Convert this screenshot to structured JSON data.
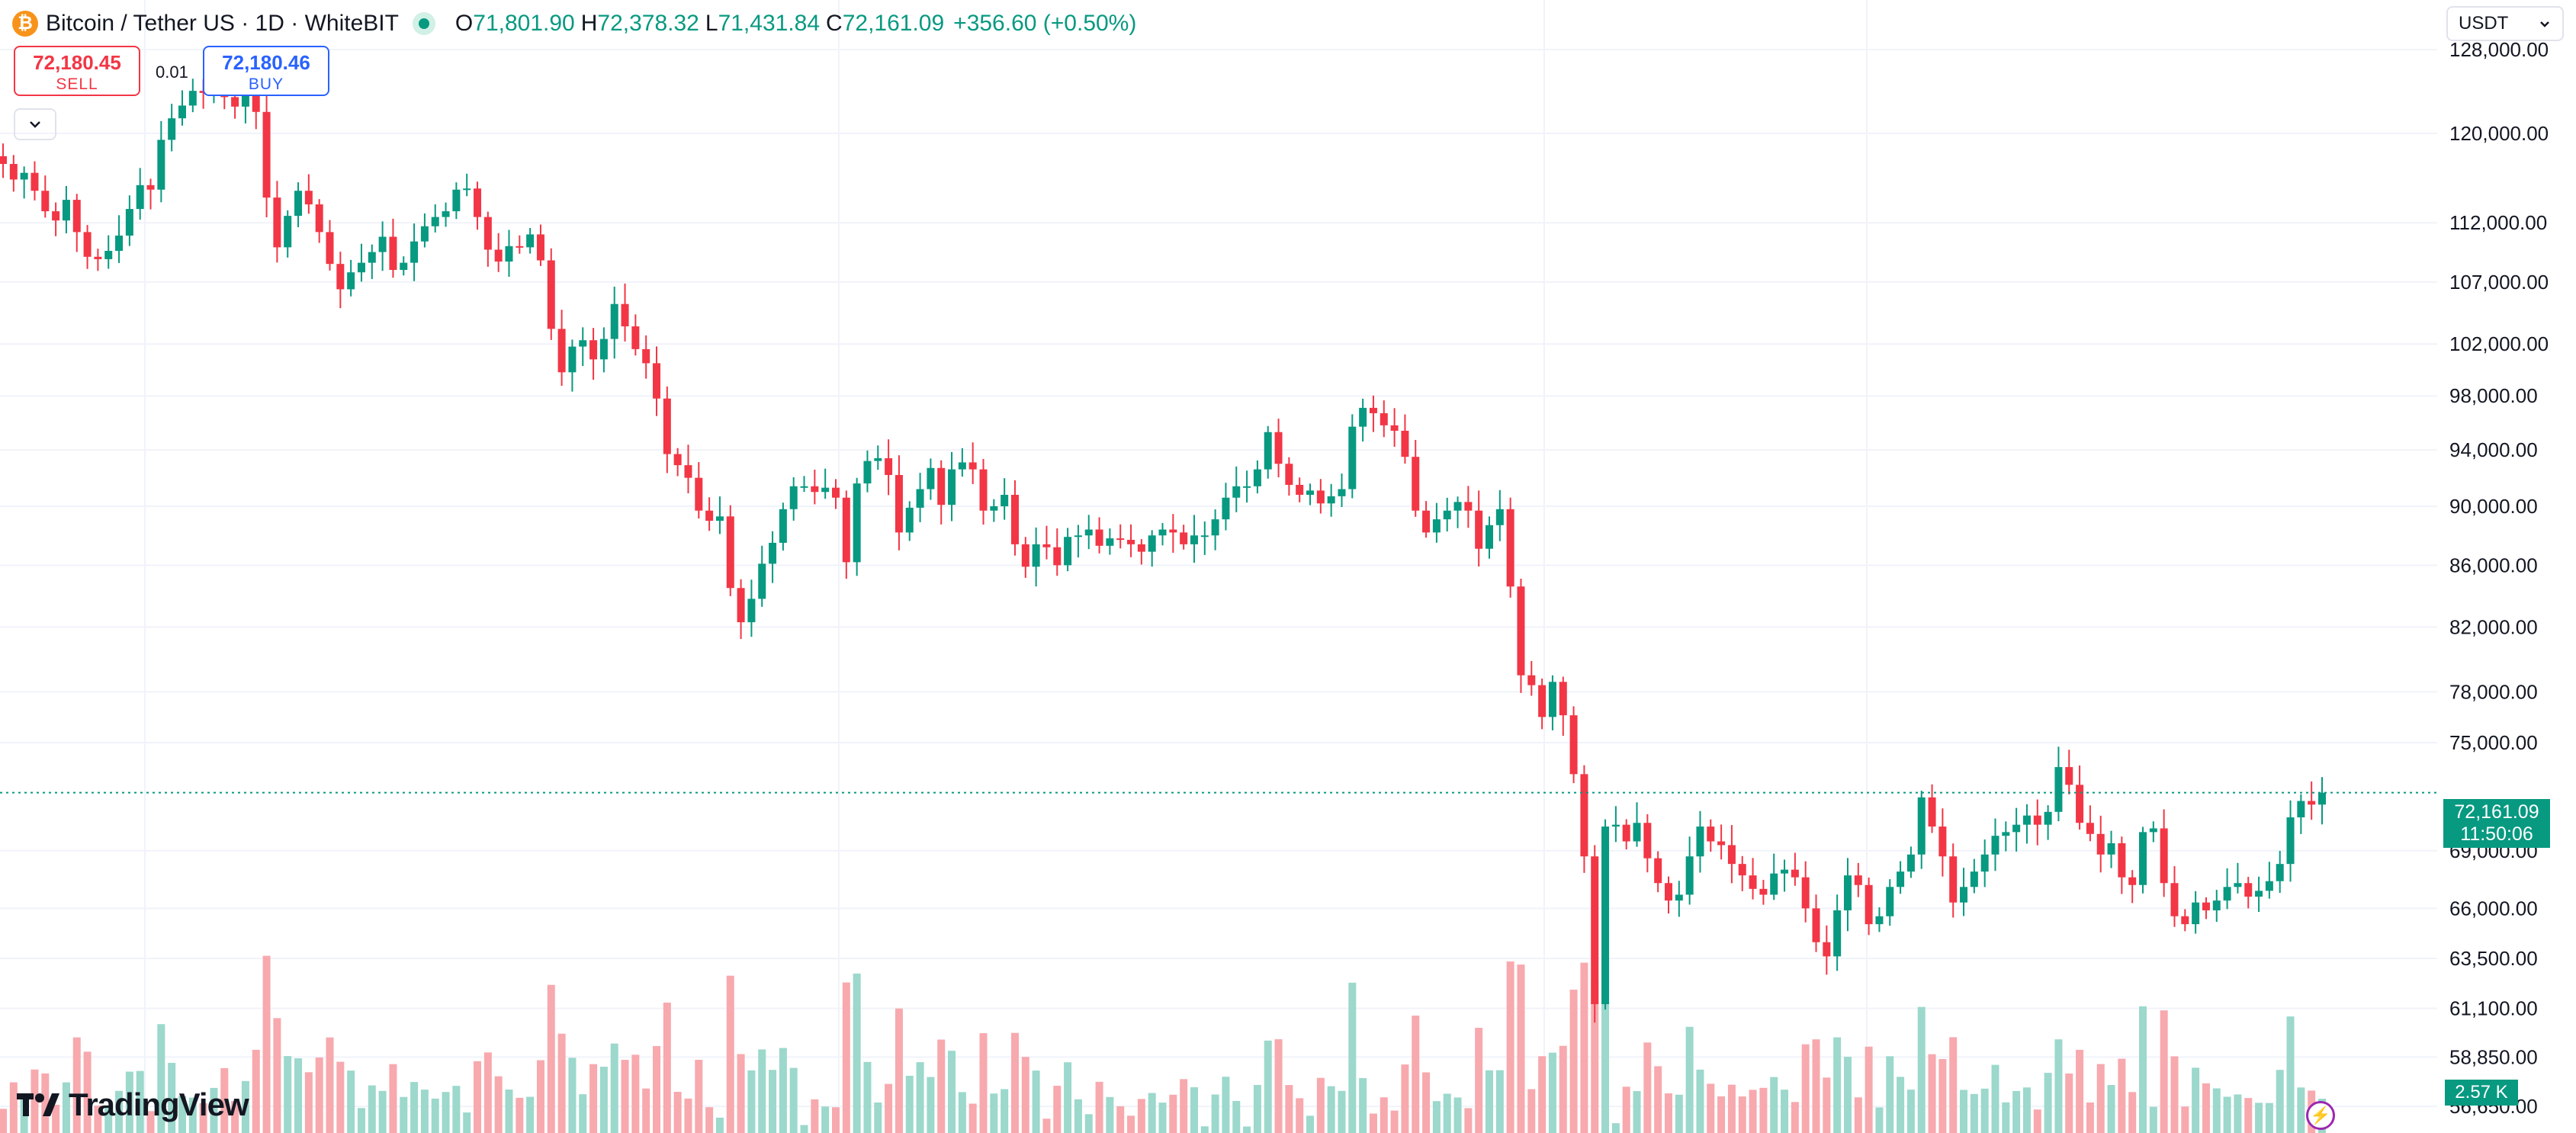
{
  "legend": {
    "symbol": "Bitcoin / Tether US · 1D · WhiteBIT",
    "icon": "bitcoin-icon",
    "open_label": "O",
    "open": "71,801.90",
    "high_label": "H",
    "high": "72,378.32",
    "low_label": "L",
    "low": "71,431.84",
    "close_label": "C",
    "close": "72,161.09",
    "change": "+356.60 (+0.50%)"
  },
  "trade": {
    "sell_price": "72,180.45",
    "sell_label": "SELL",
    "spread": "0.01",
    "buy_price": "72,180.46",
    "buy_label": "BUY"
  },
  "currency": "USDT",
  "last_price": {
    "price": "72,161.09",
    "countdown": "11:50:06",
    "value": 72161.09
  },
  "volume_tag": "2.57 K",
  "logo": "TradingView",
  "colors": {
    "up": "#089981",
    "down": "#f23645",
    "up_vol": "#9cd8cc",
    "down_vol": "#f7a9ae",
    "grid": "#f0f3fa"
  },
  "chart_data": {
    "type": "candlestick",
    "title": "Bitcoin / Tether US · 1D · WhiteBIT",
    "scale": "log",
    "ylim": [
      55500,
      133000
    ],
    "y_ticks": [
      {
        "value": 128000,
        "label": "128,000.00"
      },
      {
        "value": 120000,
        "label": "120,000.00"
      },
      {
        "value": 112000,
        "label": "112,000.00"
      },
      {
        "value": 107000,
        "label": "107,000.00"
      },
      {
        "value": 102000,
        "label": "102,000.00"
      },
      {
        "value": 98000,
        "label": "98,000.00"
      },
      {
        "value": 94000,
        "label": "94,000.00"
      },
      {
        "value": 90000,
        "label": "90,000.00"
      },
      {
        "value": 86000,
        "label": "86,000.00"
      },
      {
        "value": 82000,
        "label": "82,000.00"
      },
      {
        "value": 78000,
        "label": "78,000.00"
      },
      {
        "value": 75000,
        "label": "75,000.00"
      },
      {
        "value": 69000,
        "label": "69,000.00"
      },
      {
        "value": 66000,
        "label": "66,000.00"
      },
      {
        "value": 63500,
        "label": "63,500.00"
      },
      {
        "value": 61100,
        "label": "61,100.00"
      },
      {
        "value": 58850,
        "label": "58,850.00"
      },
      {
        "value": 56650,
        "label": "56,650.00"
      }
    ],
    "closes": [
      117200,
      115800,
      116400,
      114800,
      113000,
      112200,
      114000,
      111200,
      109100,
      108900,
      109600,
      110900,
      113200,
      115300,
      114900,
      119400,
      121400,
      122600,
      124000,
      123800,
      125100,
      123400,
      122500,
      124600,
      122000,
      114200,
      109900,
      112600,
      114800,
      113600,
      111200,
      108500,
      106400,
      107800,
      108600,
      109500,
      110800,
      108000,
      108600,
      110400,
      111700,
      112500,
      113000,
      114900,
      115000,
      112500,
      109700,
      108700,
      110000,
      109900,
      111000,
      108800,
      103200,
      99800,
      101800,
      102300,
      100800,
      102400,
      105200,
      103400,
      101600,
      100500,
      97800,
      93700,
      92900,
      92000,
      89700,
      89000,
      89300,
      84500,
      82300,
      83800,
      86100,
      87500,
      89800,
      91400,
      91400,
      91000,
      91300,
      90600,
      86200,
      91600,
      93200,
      93400,
      92200,
      88200,
      89900,
      91200,
      92700,
      90100,
      92600,
      93100,
      92600,
      89700,
      90000,
      90800,
      87400,
      85900,
      87400,
      87200,
      86000,
      87900,
      88000,
      88400,
      87300,
      87800,
      87700,
      87400,
      86900,
      88000,
      88400,
      88200,
      87400,
      88000,
      88000,
      89100,
      90600,
      91400,
      91400,
      92600,
      95300,
      93000,
      91500,
      90800,
      91100,
      90200,
      90700,
      91200,
      95700,
      97100,
      96700,
      95800,
      95400,
      93500,
      89700,
      88200,
      89100,
      89700,
      90300,
      89700,
      87100,
      88700,
      89800,
      84600,
      79000,
      78400,
      76500,
      78600,
      76600,
      73200,
      68700,
      61300,
      70300,
      70400,
      69500,
      70500,
      68600,
      67300,
      66400,
      66700,
      68700,
      70300,
      69500,
      69300,
      68300,
      67700,
      67000,
      66700,
      67800,
      68000,
      67600,
      66000,
      64300,
      63600,
      65900,
      67700,
      67200,
      65200,
      65600,
      67100,
      67900,
      68800,
      71900,
      70300,
      68700,
      66300,
      67100,
      67900,
      68800,
      69800,
      70000,
      70400,
      70900,
      70400,
      71100,
      73600,
      72600,
      70500,
      69900,
      68800,
      69400,
      67600,
      67200,
      70000,
      70200,
      67300,
      65600,
      65200,
      66300,
      65900,
      66400,
      67100,
      67300,
      66600,
      66900,
      67400,
      68300,
      70800,
      71700,
      71500,
      72161
    ],
    "candle_width": 10
  }
}
